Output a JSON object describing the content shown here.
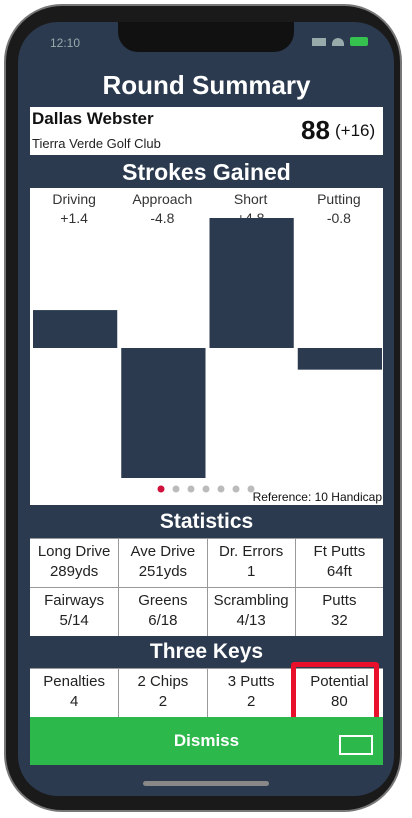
{
  "status_bar": {
    "time": "12:10"
  },
  "header": {
    "title": "Round Summary"
  },
  "player": {
    "name": "Dallas Webster",
    "course": "Tierra Verde Golf Club",
    "score": 88,
    "to_par": "(+16)"
  },
  "strokes_gained": {
    "title": "Strokes Gained",
    "categories": [
      "Driving",
      "Approach",
      "Short",
      "Putting"
    ],
    "values": [
      1.4,
      -4.8,
      4.8,
      -0.8
    ],
    "value_labels": [
      "+1.4",
      "-4.8",
      "+4.8",
      "-0.8"
    ],
    "reference": "Reference: 10 Handicap"
  },
  "statistics": {
    "title": "Statistics",
    "cells": [
      {
        "label": "Long Drive",
        "value": "289yds"
      },
      {
        "label": "Ave Drive",
        "value": "251yds"
      },
      {
        "label": "Dr. Errors",
        "value": "1"
      },
      {
        "label": "Ft Putts",
        "value": "64ft"
      },
      {
        "label": "Fairways",
        "value": "5/14"
      },
      {
        "label": "Greens",
        "value": "6/18"
      },
      {
        "label": "Scrambling",
        "value": "4/13"
      },
      {
        "label": "Putts",
        "value": "32"
      }
    ]
  },
  "three_keys": {
    "title": "Three Keys",
    "cells": [
      {
        "label": "Penalties",
        "value": "4"
      },
      {
        "label": "2 Chips",
        "value": "2"
      },
      {
        "label": "3 Putts",
        "value": "2"
      },
      {
        "label": "Potential",
        "value": "80"
      }
    ]
  },
  "dismiss": "Dismiss"
}
